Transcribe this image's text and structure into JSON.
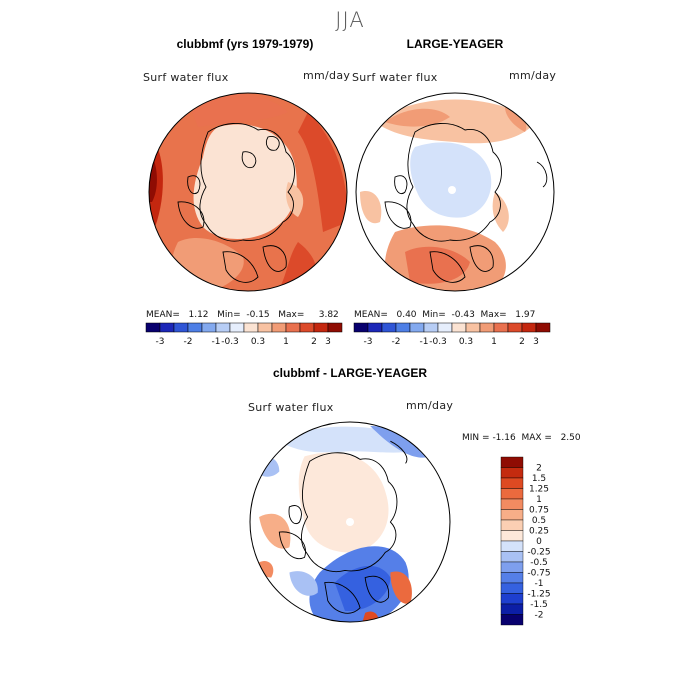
{
  "figure": {
    "season": "JJA",
    "panels": [
      {
        "title": "clubbmf (yrs 1979-1979)",
        "variable": "Surf water flux",
        "units": "mm/day",
        "stats": {
          "mean_label": "MEAN=",
          "mean": "1.12",
          "min_label": "Min=",
          "min": "-0.15",
          "max_label": "Max=",
          "max": "3.82"
        }
      },
      {
        "title": "LARGE-YEAGER",
        "variable": "Surf water flux",
        "units": "mm/day",
        "stats": {
          "mean_label": "MEAN=",
          "mean": "0.40",
          "min_label": "Min=",
          "min": "-0.43",
          "max_label": "Max=",
          "max": "1.97"
        }
      },
      {
        "title": "clubbmf - LARGE-YEAGER",
        "variable": "Surf water flux",
        "units": "mm/day",
        "stats": {
          "min_label": "MIN =",
          "min": "-1.16",
          "max_label": "MAX =",
          "max": "2.50"
        }
      }
    ],
    "top_colorbar": {
      "colors": [
        "#08006e",
        "#1c27b8",
        "#2f55d6",
        "#4e7fe6",
        "#83a9ef",
        "#b7cdf5",
        "#e6eefc",
        "#fbe3d3",
        "#f8c2a2",
        "#f19c76",
        "#e9714f",
        "#dc4a2a",
        "#c4270f",
        "#8f0c03"
      ],
      "tick_labels": [
        "-3",
        "-2",
        "-1",
        "-0.3",
        "0.3",
        "1",
        "2",
        "3"
      ]
    },
    "bottom_colorbar": {
      "colors": [
        "#08006e",
        "#0c1ea6",
        "#1e3fcf",
        "#3561e0",
        "#557fe8",
        "#7e9fee",
        "#a9c1f4",
        "#d4e2fa",
        "#fde8da",
        "#fbcfb3",
        "#f7ae88",
        "#f28b61",
        "#eb6a3e",
        "#de4a22",
        "#c42b0f",
        "#8f0c03"
      ],
      "tick_labels": [
        "2",
        "1.5",
        "1.25",
        "1",
        "0.75",
        "0.5",
        "0.25",
        "0",
        "-0.25",
        "-0.5",
        "-0.75",
        "-1",
        "-1.25",
        "-1.5",
        "-2"
      ]
    }
  }
}
